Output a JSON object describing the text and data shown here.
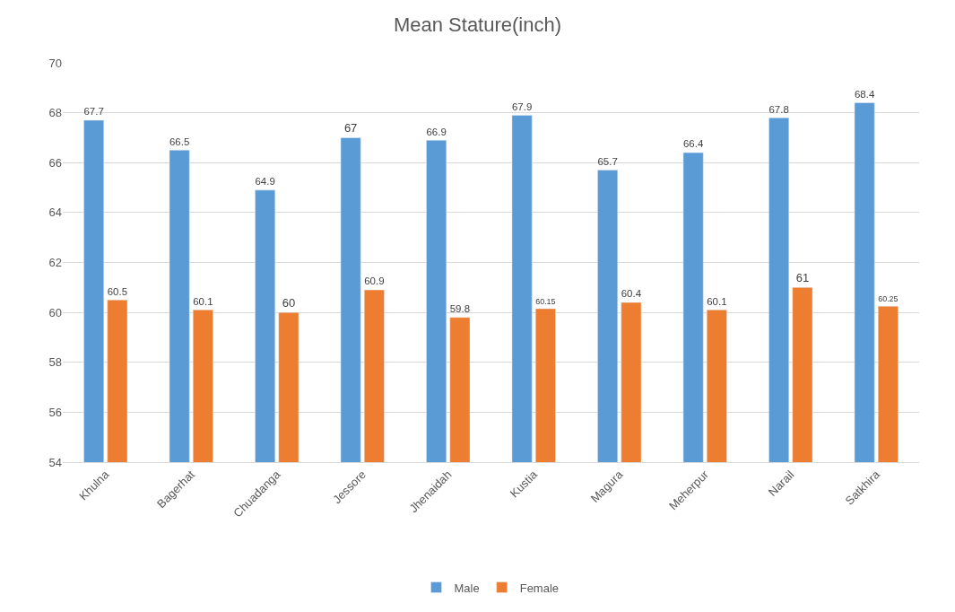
{
  "chart_data": {
    "type": "bar",
    "title": "Mean Stature(inch)",
    "categories": [
      "Khulna",
      "Bagerhat",
      "Chuadanga",
      "Jessore",
      "Jhenaidah",
      "Kustia",
      "Magura",
      "Meherpur",
      "Narail",
      "Satkhira"
    ],
    "series": [
      {
        "name": "Male",
        "color": "#5b9bd5",
        "values": [
          67.7,
          66.5,
          64.9,
          67,
          66.9,
          67.9,
          65.7,
          66.4,
          67.8,
          68.4
        ]
      },
      {
        "name": "Female",
        "color": "#ed7d31",
        "values": [
          60.5,
          60.1,
          60,
          60.9,
          59.8,
          60.15,
          60.4,
          60.1,
          61,
          60.25
        ]
      }
    ],
    "ylim": [
      54,
      70
    ],
    "yticks": [
      54,
      56,
      58,
      60,
      62,
      64,
      66,
      68,
      70
    ],
    "grid": "y",
    "legend": "bottom",
    "data_labels": true
  }
}
